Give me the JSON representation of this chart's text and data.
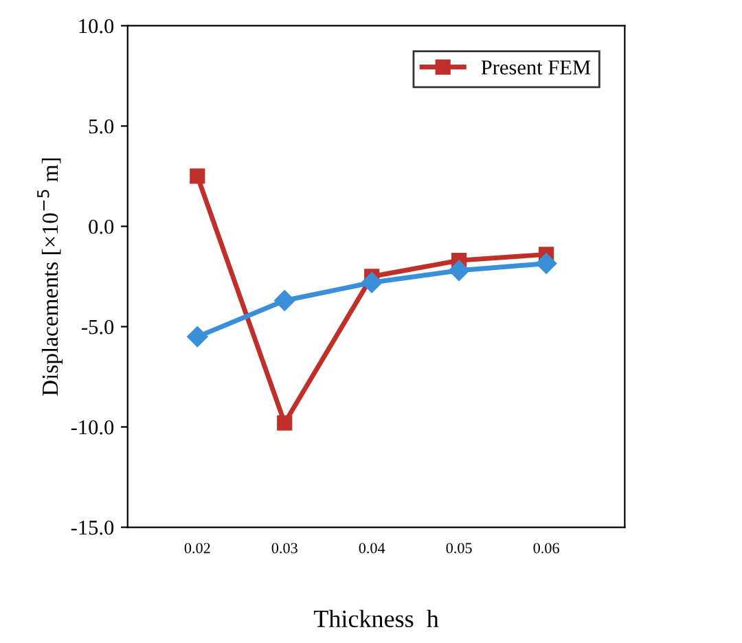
{
  "chart_data": {
    "type": "line",
    "xlabel": "Thickness  h",
    "ylabel": "Displacements [×10$^{−5}$ m]",
    "x": [
      0.02,
      0.03,
      0.04,
      0.05,
      0.06
    ],
    "xlim": [
      0.012,
      0.069
    ],
    "xticks": [
      0.02,
      0.03,
      0.04,
      0.05,
      0.06
    ],
    "ylim": [
      -15,
      10
    ],
    "yticks": [
      {
        "value": -15,
        "label": "-15.0"
      },
      {
        "value": -10,
        "label": "-10.0"
      },
      {
        "value": -5,
        "label": "-5.0"
      },
      {
        "value": 0,
        "label": "0.0"
      },
      {
        "value": 5,
        "label": "5.0"
      },
      {
        "value": 10,
        "label": "10.0"
      }
    ],
    "series": [
      {
        "color": "#3b8ed8",
        "marker": "diamond",
        "values": [
          -5.5,
          -3.7,
          -2.8,
          -2.2,
          -1.85
        ]
      },
      {
        "name": "Present FEM",
        "color": "#c0302b",
        "marker": "square",
        "values": [
          2.5,
          -9.8,
          -2.5,
          -1.7,
          -1.4
        ]
      }
    ],
    "legend": "top right",
    "grid": false,
    "line_style": "solid"
  }
}
